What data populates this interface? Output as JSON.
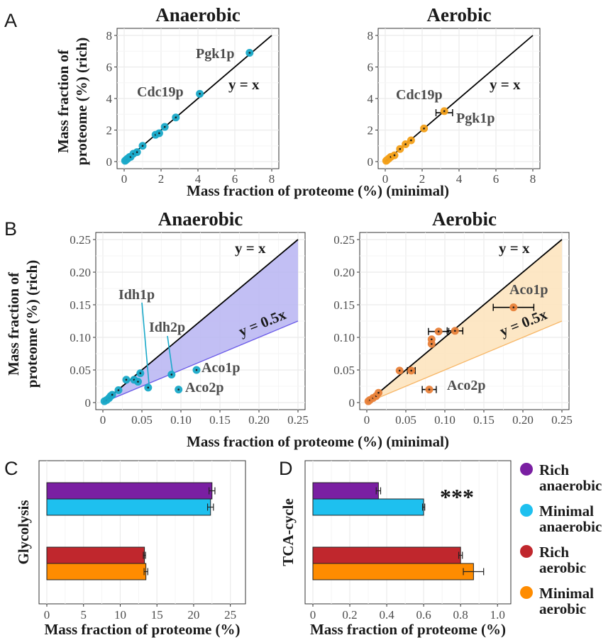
{
  "colors": {
    "rich_anaerobic": "#7a1fa2",
    "minimal_anaerobic": "#1ec0ef",
    "rich_aerobic": "#c0272d",
    "minimal_aerobic": "#ff8c00",
    "anaerobic_points": "#1aa9c9",
    "aerobic_points": "#f4a11a",
    "aerobic_points_b": "#e8813a",
    "band_anaerobic": "#b7b4f2",
    "band_aerobic": "#fde3bb",
    "grid": "#ebebeb",
    "frame": "#333333",
    "label_anaerobic_half": "#2f5fa8",
    "label_aerobic_half": "#ff8c1a",
    "label_aerobic_line": "#f7b768"
  },
  "panels": {
    "A": "A",
    "B": "B",
    "C": "C",
    "D": "D"
  },
  "shared_labels": {
    "scatter_ylabel_line1": "Mass fraction of",
    "scatter_ylabel_line2": "proteome (%) (rich)",
    "scatter_xlabel": "Mass fraction of proteome (%) (minimal)",
    "bar_xlabel": "Mass fraction of proteome (%)"
  },
  "legend": [
    {
      "line1": "Rich",
      "line2": "anaerobic",
      "color": "#7a1fa2"
    },
    {
      "line1": "Minimal",
      "line2": "anaerobic",
      "color": "#1ec0ef"
    },
    {
      "line1": "Rich",
      "line2": "aerobic",
      "color": "#c0272d"
    },
    {
      "line1": "Minimal",
      "line2": "aerobic",
      "color": "#ff8c00"
    }
  ],
  "chart_data": [
    {
      "id": "A-anaerobic",
      "type": "scatter",
      "title": "Anaerobic",
      "xlim": [
        0,
        8
      ],
      "ylim": [
        0,
        8
      ],
      "xticks": [
        0,
        2,
        4,
        6,
        8
      ],
      "yticks": [
        0,
        2,
        4,
        6,
        8
      ],
      "tick_labels_x": [
        "0",
        "2",
        "4",
        "6",
        "8"
      ],
      "tick_labels_y": [
        "0",
        "2",
        "4",
        "6",
        "8"
      ],
      "reference": "y = x",
      "color": "#1aa9c9",
      "points": [
        {
          "x": 0.05,
          "y": 0.05
        },
        {
          "x": 0.1,
          "y": 0.1
        },
        {
          "x": 0.15,
          "y": 0.15
        },
        {
          "x": 0.2,
          "y": 0.2
        },
        {
          "x": 0.3,
          "y": 0.3
        },
        {
          "x": 0.35,
          "y": 0.3
        },
        {
          "x": 0.5,
          "y": 0.5
        },
        {
          "x": 0.7,
          "y": 0.6
        },
        {
          "x": 1.0,
          "y": 1.0
        },
        {
          "x": 1.7,
          "y": 1.7
        },
        {
          "x": 1.9,
          "y": 1.8
        },
        {
          "x": 2.2,
          "y": 2.2
        },
        {
          "x": 2.8,
          "y": 2.8
        },
        {
          "x": 4.1,
          "y": 4.3
        },
        {
          "x": 6.8,
          "y": 6.9
        }
      ],
      "annotations": [
        {
          "text": "Pgk1p",
          "x": 6.8,
          "y": 6.9
        },
        {
          "text": "Cdc19p",
          "x": 4.1,
          "y": 4.3
        },
        {
          "text": "y = x",
          "x": 6.2,
          "y": 4.9
        }
      ]
    },
    {
      "id": "A-aerobic",
      "type": "scatter",
      "title": "Aerobic",
      "xlim": [
        0,
        8
      ],
      "ylim": [
        0,
        8
      ],
      "xticks": [
        0,
        2,
        4,
        6,
        8
      ],
      "yticks": [
        0,
        2,
        4,
        6,
        8
      ],
      "tick_labels_x": [
        "0",
        "2",
        "4",
        "6",
        "8"
      ],
      "tick_labels_y": [
        "0",
        "2",
        "4",
        "6",
        "8"
      ],
      "reference": "y = x",
      "color": "#f4a11a",
      "points": [
        {
          "x": 0.05,
          "y": 0.05
        },
        {
          "x": 0.1,
          "y": 0.1
        },
        {
          "x": 0.2,
          "y": 0.2
        },
        {
          "x": 0.3,
          "y": 0.3
        },
        {
          "x": 0.5,
          "y": 0.4
        },
        {
          "x": 0.8,
          "y": 0.8
        },
        {
          "x": 1.1,
          "y": 1.1
        },
        {
          "x": 1.4,
          "y": 1.35
        },
        {
          "x": 2.1,
          "y": 2.1
        },
        {
          "x": 3.2,
          "y": 3.2
        }
      ],
      "errorbars_x": [
        {
          "x": 3.2,
          "y": 3.1,
          "xerr": 0.45
        }
      ],
      "annotations": [
        {
          "text": "Cdc19p",
          "x": 3.2,
          "y": 3.2
        },
        {
          "text": "Pgk1p",
          "x": 3.2,
          "y": 3.1
        },
        {
          "text": "y = x",
          "x": 6.2,
          "y": 4.9
        }
      ]
    },
    {
      "id": "B-anaerobic",
      "type": "scatter",
      "title": "Anaerobic",
      "xlim": [
        0,
        0.25
      ],
      "ylim": [
        0,
        0.25
      ],
      "xticks": [
        0,
        0.05,
        0.1,
        0.15,
        0.2,
        0.25
      ],
      "yticks": [
        0,
        0.05,
        0.1,
        0.15,
        0.2,
        0.25
      ],
      "tick_labels_x": [
        "0",
        "0.05",
        "0.10",
        "0.15",
        "0.20",
        "0.25"
      ],
      "tick_labels_y": [
        "0",
        "0.05",
        "0.10",
        "0.15",
        "0.20",
        "0.25"
      ],
      "reference": "y = x",
      "reference_half": "y = 0.5x",
      "color": "#1aa9c9",
      "points": [
        {
          "x": 0.002,
          "y": 0.002
        },
        {
          "x": 0.005,
          "y": 0.004
        },
        {
          "x": 0.008,
          "y": 0.007
        },
        {
          "x": 0.01,
          "y": 0.01
        },
        {
          "x": 0.012,
          "y": 0.012
        },
        {
          "x": 0.02,
          "y": 0.019
        },
        {
          "x": 0.03,
          "y": 0.035
        },
        {
          "x": 0.04,
          "y": 0.035
        },
        {
          "x": 0.045,
          "y": 0.032
        },
        {
          "x": 0.048,
          "y": 0.045
        },
        {
          "x": 0.058,
          "y": 0.023
        },
        {
          "x": 0.088,
          "y": 0.043
        },
        {
          "x": 0.097,
          "y": 0.02
        },
        {
          "x": 0.12,
          "y": 0.05
        }
      ],
      "annotations": [
        {
          "text": "Idh1p",
          "x": 0.058,
          "y": 0.023
        },
        {
          "text": "Idh2p",
          "x": 0.088,
          "y": 0.043
        },
        {
          "text": "Aco1p",
          "x": 0.12,
          "y": 0.05
        },
        {
          "text": "Aco2p",
          "x": 0.097,
          "y": 0.02
        }
      ]
    },
    {
      "id": "B-aerobic",
      "type": "scatter",
      "title": "Aerobic",
      "xlim": [
        0,
        0.25
      ],
      "ylim": [
        0,
        0.25
      ],
      "xticks": [
        0,
        0.05,
        0.1,
        0.15,
        0.2,
        0.25
      ],
      "yticks": [
        0,
        0.05,
        0.1,
        0.15,
        0.2,
        0.25
      ],
      "tick_labels_x": [
        "0",
        "0.05",
        "0.10",
        "0.15",
        "0.20",
        "0.25"
      ],
      "tick_labels_y": [
        "0",
        "0.05",
        "0.10",
        "0.15",
        "0.20",
        "0.25"
      ],
      "reference": "y = x",
      "reference_half": "y = 0.5x",
      "color": "#e8813a",
      "points": [
        {
          "x": 0.002,
          "y": 0.002
        },
        {
          "x": 0.004,
          "y": 0.004
        },
        {
          "x": 0.008,
          "y": 0.007
        },
        {
          "x": 0.012,
          "y": 0.01
        },
        {
          "x": 0.015,
          "y": 0.015
        },
        {
          "x": 0.042,
          "y": 0.049
        },
        {
          "x": 0.057,
          "y": 0.049
        },
        {
          "x": 0.083,
          "y": 0.09
        },
        {
          "x": 0.083,
          "y": 0.097
        },
        {
          "x": 0.092,
          "y": 0.109
        },
        {
          "x": 0.113,
          "y": 0.11
        },
        {
          "x": 0.188,
          "y": 0.146
        },
        {
          "x": 0.08,
          "y": 0.02
        }
      ],
      "errorbars_x": [
        {
          "x": 0.188,
          "y": 0.146,
          "xerr": 0.026
        },
        {
          "x": 0.092,
          "y": 0.109,
          "xerr": 0.013
        },
        {
          "x": 0.113,
          "y": 0.11,
          "xerr": 0.01
        },
        {
          "x": 0.08,
          "y": 0.02,
          "xerr": 0.009
        },
        {
          "x": 0.057,
          "y": 0.049,
          "xerr": 0.005
        }
      ],
      "annotations": [
        {
          "text": "Aco1p",
          "x": 0.188,
          "y": 0.146
        },
        {
          "text": "Aco2p",
          "x": 0.08,
          "y": 0.02
        }
      ]
    },
    {
      "id": "C",
      "type": "bar",
      "orientation": "horizontal",
      "category": "Glycolysis",
      "xlim": [
        0,
        26
      ],
      "xticks": [
        0,
        5,
        10,
        15,
        20,
        25
      ],
      "tick_labels_x": [
        "0",
        "5",
        "10",
        "15",
        "20",
        "25"
      ],
      "xlabel": "Mass fraction of proteome (%)",
      "series": [
        {
          "name": "Rich anaerobic",
          "value": 22.5,
          "err": 0.4
        },
        {
          "name": "Minimal anaerobic",
          "value": 22.3,
          "err": 0.4
        },
        {
          "name": "Rich aerobic",
          "value": 13.3,
          "err": 0.15
        },
        {
          "name": "Minimal aerobic",
          "value": 13.5,
          "err": 0.25
        }
      ]
    },
    {
      "id": "D",
      "type": "bar",
      "orientation": "horizontal",
      "category": "TCA-cycle",
      "xlim": [
        0,
        1.03
      ],
      "xticks": [
        0,
        0.2,
        0.4,
        0.6,
        0.8,
        1.0
      ],
      "tick_labels_x": [
        "0",
        "0.2",
        "0.4",
        "0.6",
        "0.8",
        "1.0"
      ],
      "xlabel": "Mass fraction of proteome (%)",
      "significance": "***",
      "series": [
        {
          "name": "Rich anaerobic",
          "value": 0.355,
          "err": 0.012
        },
        {
          "name": "Minimal anaerobic",
          "value": 0.6,
          "err": 0.006
        },
        {
          "name": "Rich aerobic",
          "value": 0.8,
          "err": 0.01
        },
        {
          "name": "Minimal aerobic",
          "value": 0.87,
          "err": 0.055
        }
      ]
    }
  ]
}
